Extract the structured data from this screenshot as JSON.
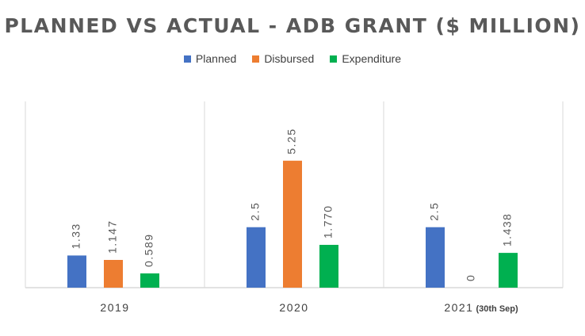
{
  "chart_data": {
    "type": "bar",
    "title": "PLANNED VS ACTUAL - ADB GRANT ($ MILLION)",
    "categories": [
      {
        "main": "2019",
        "sub": ""
      },
      {
        "main": "2020",
        "sub": ""
      },
      {
        "main": "2021",
        "sub": "(30th Sep)"
      }
    ],
    "series": [
      {
        "name": "Planned",
        "color": "#4472C4",
        "values": [
          1.33,
          2.5,
          2.5
        ],
        "labels": [
          "1.33",
          "2.5",
          "2.5"
        ]
      },
      {
        "name": "Disbursed",
        "color": "#ED7D31",
        "values": [
          1.147,
          5.25,
          0
        ],
        "labels": [
          "1.147",
          "5.25",
          "0"
        ]
      },
      {
        "name": "Expenditure",
        "color": "#00B050",
        "values": [
          0.589,
          1.77,
          1.438
        ],
        "labels": [
          "0.589",
          "1.770",
          "1.438"
        ]
      }
    ],
    "ylim": [
      0,
      7.7
    ],
    "grid": false,
    "legend_position": "top"
  }
}
